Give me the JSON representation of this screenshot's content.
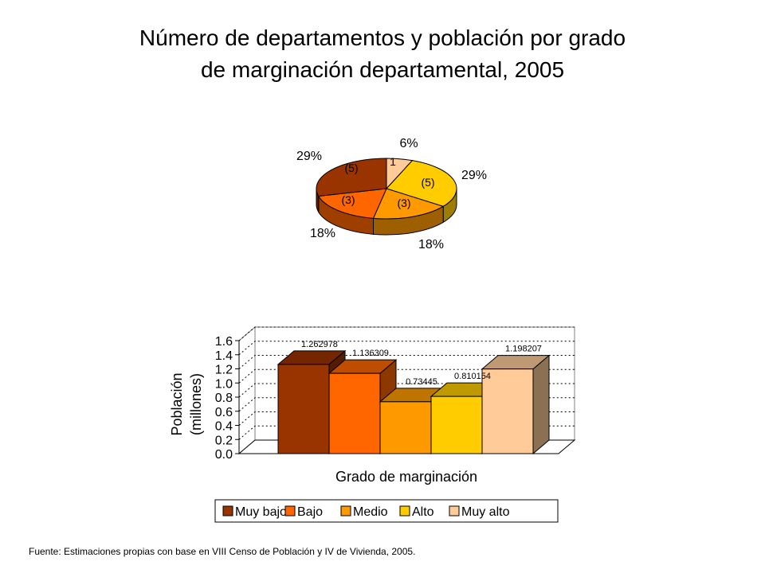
{
  "title_line1": "Número de departamentos y población por grado",
  "title_line2": "de marginación departamental, 2005",
  "source": "Fuente: Estimaciones propias con base en VIII Censo de Población y IV de Vivienda, 2005.",
  "colors": {
    "Muy bajo": "#993300",
    "Bajo": "#FF6600",
    "Medio": "#FF9900",
    "Alto": "#FFCC00",
    "Muy alto": "#FFCC99"
  },
  "chart_data": [
    {
      "type": "pie",
      "slices": [
        {
          "category": "Muy alto",
          "count_label": "1",
          "percent_label": "6%",
          "percent": 6
        },
        {
          "category": "Alto",
          "count_label": "(5)",
          "percent_label": "29%",
          "percent": 29
        },
        {
          "category": "Medio",
          "count_label": "(3)",
          "percent_label": "18%",
          "percent": 18
        },
        {
          "category": "Bajo",
          "count_label": "(3)",
          "percent_label": "18%",
          "percent": 18
        },
        {
          "category": "Muy bajo",
          "count_label": "(5)",
          "percent_label": "29%",
          "percent": 29
        }
      ]
    },
    {
      "type": "bar",
      "categories": [
        "Muy bajo",
        "Bajo",
        "Medio",
        "Alto",
        "Muy alto"
      ],
      "values": [
        1.262978,
        1.136309,
        0.73445,
        0.810154,
        1.198207
      ],
      "data_labels": [
        "1.262978",
        "1.136309",
        "0.73445",
        "0.810154",
        "1.198207"
      ],
      "xlabel": "Grado de marginación",
      "ylabel_line1": "Población",
      "ylabel_line2": "(millones)",
      "ylim": [
        0,
        1.6
      ],
      "yticks": [
        "0.0",
        "0.2",
        "0.4",
        "0.6",
        "0.8",
        "1.0",
        "1.2",
        "1.4",
        "1.6"
      ],
      "grid": true,
      "legend_position": "bottom",
      "legend": [
        "Muy bajo",
        "Bajo",
        "Medio",
        "Alto",
        "Muy alto"
      ]
    }
  ]
}
